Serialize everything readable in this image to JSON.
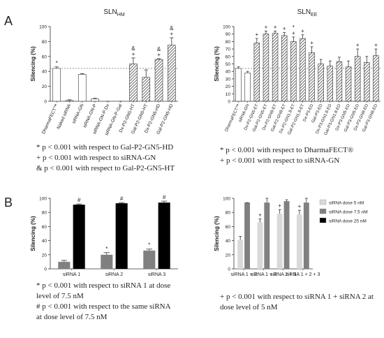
{
  "panels": [
    "A",
    "B"
  ],
  "chart_data": [
    {
      "type": "bar",
      "title": "SLN",
      "title_sub": "HM",
      "ylabel": "Silencing (%)",
      "categories": [
        "DharmaFECT™",
        "Naked siRNA",
        "siRNA-GN",
        "siRNA-GN-P",
        "siRNA-GN-P-Dx",
        "siRNA-GN-P-Gal",
        "Dx-P2-GN5-HT",
        "Gal-P2-GN5-HT",
        "Dx-P2-GN5-HD",
        "Gal-P2-GN5-HD"
      ],
      "values": [
        44,
        1,
        36,
        3,
        0,
        0,
        50,
        32,
        56,
        75
      ],
      "errors": [
        2,
        1,
        1,
        1,
        0,
        0,
        8,
        10,
        1,
        10
      ],
      "fills": [
        "white",
        "white",
        "white",
        "white",
        "white",
        "white",
        "hatch",
        "hatch",
        "hatch",
        "hatch"
      ],
      "annotations": [
        "*",
        null,
        null,
        null,
        null,
        null,
        "& +",
        null,
        "& +",
        "& +"
      ],
      "reference_line": 44,
      "ylim": [
        0,
        100
      ],
      "yticks": [
        0,
        20,
        40,
        60,
        80,
        100
      ],
      "notes": [
        "* p < 0.001 with respect to Gal-P2-GN5-HD",
        "+ p < 0.001 with respect to siRNA-GN",
        "& p < 0.001 with respect to Gal-P2-GN5-HT"
      ]
    },
    {
      "type": "bar",
      "title": "SLN",
      "title_sub": "EE",
      "ylabel": "Silencing (%)",
      "categories": [
        "DharmaFECT™",
        "siRNA-GN",
        "Dx-P2-GN5-ET",
        "Gal-P2-GN5-ET",
        "Dx-P2-GN8-ET",
        "Gal-P2-GN8-ET",
        "Dx-P2-GN1.8-ET",
        "Gal-P2-GN1.8-ET",
        "Dx-P3-ED",
        "Gal-P3-ED",
        "Dx-P3-GN1.8-ED",
        "Gal-P3-GN1.8-ED",
        "Dx-P3-GN5-ED",
        "Gal-P3-GN5-ED",
        "Dx-P3-GN8-ED",
        "Gal-P3-GN8-ED"
      ],
      "values": [
        44,
        38,
        78,
        90,
        91,
        88,
        80,
        84,
        65,
        50,
        47,
        53,
        46,
        60,
        52,
        61
      ],
      "errors": [
        2,
        2,
        6,
        4,
        3,
        4,
        6,
        5,
        8,
        6,
        7,
        6,
        8,
        10,
        8,
        9
      ],
      "fills": [
        "white",
        "white",
        "hatch",
        "hatch",
        "hatch",
        "hatch",
        "hatch",
        "hatch",
        "hatch",
        "hatch",
        "hatch",
        "hatch",
        "hatch",
        "hatch",
        "hatch",
        "hatch"
      ],
      "annotations": [
        null,
        null,
        "+",
        "+",
        "+",
        "+",
        "* +",
        "+",
        "+",
        null,
        null,
        null,
        null,
        "+",
        null,
        "+"
      ],
      "reference_line": 44,
      "ylim": [
        0,
        100
      ],
      "yticks": [
        0,
        10,
        20,
        30,
        40,
        50,
        60,
        70,
        80,
        90,
        100
      ],
      "notes": [
        "* p < 0.001 with respect to DharmaFECT®",
        "+ p < 0.001 with respect to siRNA-GN"
      ]
    },
    {
      "type": "bar",
      "ylabel": "Silencing (%)",
      "categories": [
        "siRNA 1",
        "siRNA 2",
        "siRNA 3"
      ],
      "series": [
        {
          "color": "#808080",
          "values": [
            10,
            20,
            26
          ],
          "errors": [
            2,
            3,
            2
          ],
          "annotations": [
            null,
            "*",
            "*"
          ]
        },
        {
          "color": "#000000",
          "values": [
            91,
            93,
            94
          ],
          "errors": [
            1,
            1,
            2
          ],
          "annotations": [
            "#",
            "#",
            "#"
          ]
        }
      ],
      "ylim": [
        0,
        100
      ],
      "yticks": [
        0,
        20,
        40,
        60,
        80,
        100
      ],
      "notes": [
        "* p < 0.001 with respect to siRNA 1 at dose",
        "level of 7.5 nM",
        "# p < 0.001 with respect to the same siRNA",
        "at dose level of 7.5 nM"
      ]
    },
    {
      "type": "bar",
      "ylabel": "Silencing (%)",
      "categories": [
        "siRNA 1 + 2",
        "siRNA 1 + 3",
        "siRNA 2 + 3",
        "siRNA 1 + 2 + 3"
      ],
      "series": [
        {
          "name": "siRNA dose 5 nM",
          "color": "#d9d9d9",
          "values": [
            41,
            66,
            78,
            77
          ],
          "errors": [
            5,
            5,
            6,
            6
          ],
          "annotations": [
            null,
            "+",
            "+",
            "+"
          ]
        },
        {
          "name": "siRNA dose 7.5 nM",
          "color": "#808080",
          "values": [
            94,
            94,
            96,
            94
          ],
          "errors": [
            0,
            6,
            2,
            6
          ],
          "annotations": [
            null,
            null,
            null,
            null
          ]
        },
        {
          "name": "siRNA dose 25 nM",
          "color": "#000000",
          "values": [
            null,
            null,
            null,
            null
          ],
          "errors": [
            null,
            null,
            null,
            null
          ],
          "annotations": [
            null,
            null,
            null,
            null
          ]
        }
      ],
      "legend": "upper right",
      "ylim": [
        0,
        100
      ],
      "yticks": [
        0,
        20,
        40,
        60,
        80,
        100
      ],
      "notes": [
        "+ p < 0.001 with respect to siRNA 1 +  siRNA 2 at",
        "dose level of 5 nM"
      ]
    }
  ]
}
